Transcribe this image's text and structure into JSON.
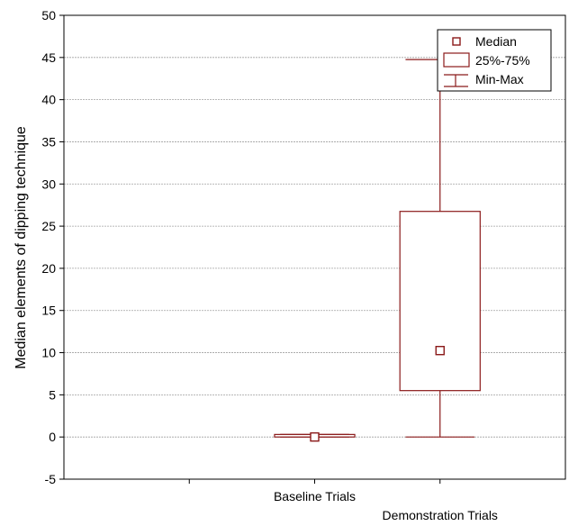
{
  "chart_data": {
    "type": "boxplot",
    "ylabel": "Median elements of dipping technique",
    "xlabel": "",
    "ylim": [
      -5,
      50
    ],
    "y_ticks": [
      "-5",
      "0",
      "5",
      "10",
      "15",
      "20",
      "25",
      "30",
      "35",
      "40",
      "45",
      "50"
    ],
    "categories": [
      "Baseline Trials",
      "Demonstration Trials"
    ],
    "series": [
      {
        "category": "Baseline Trials",
        "median": 0,
        "q1": 0,
        "q3": 0.3,
        "min": 0,
        "max": 0.3
      },
      {
        "category": "Demonstration Trials",
        "median": 10.25,
        "q1": 5.5,
        "q3": 26.75,
        "min": 0,
        "max": 44.75
      }
    ],
    "legend": {
      "position": "top-right",
      "entries": [
        "Median",
        "25%-75%",
        "Min-Max"
      ]
    },
    "grid": true,
    "colors": {
      "box": "#8b1a1a",
      "grid": "#a0a0a0",
      "axis": "#000000"
    }
  }
}
